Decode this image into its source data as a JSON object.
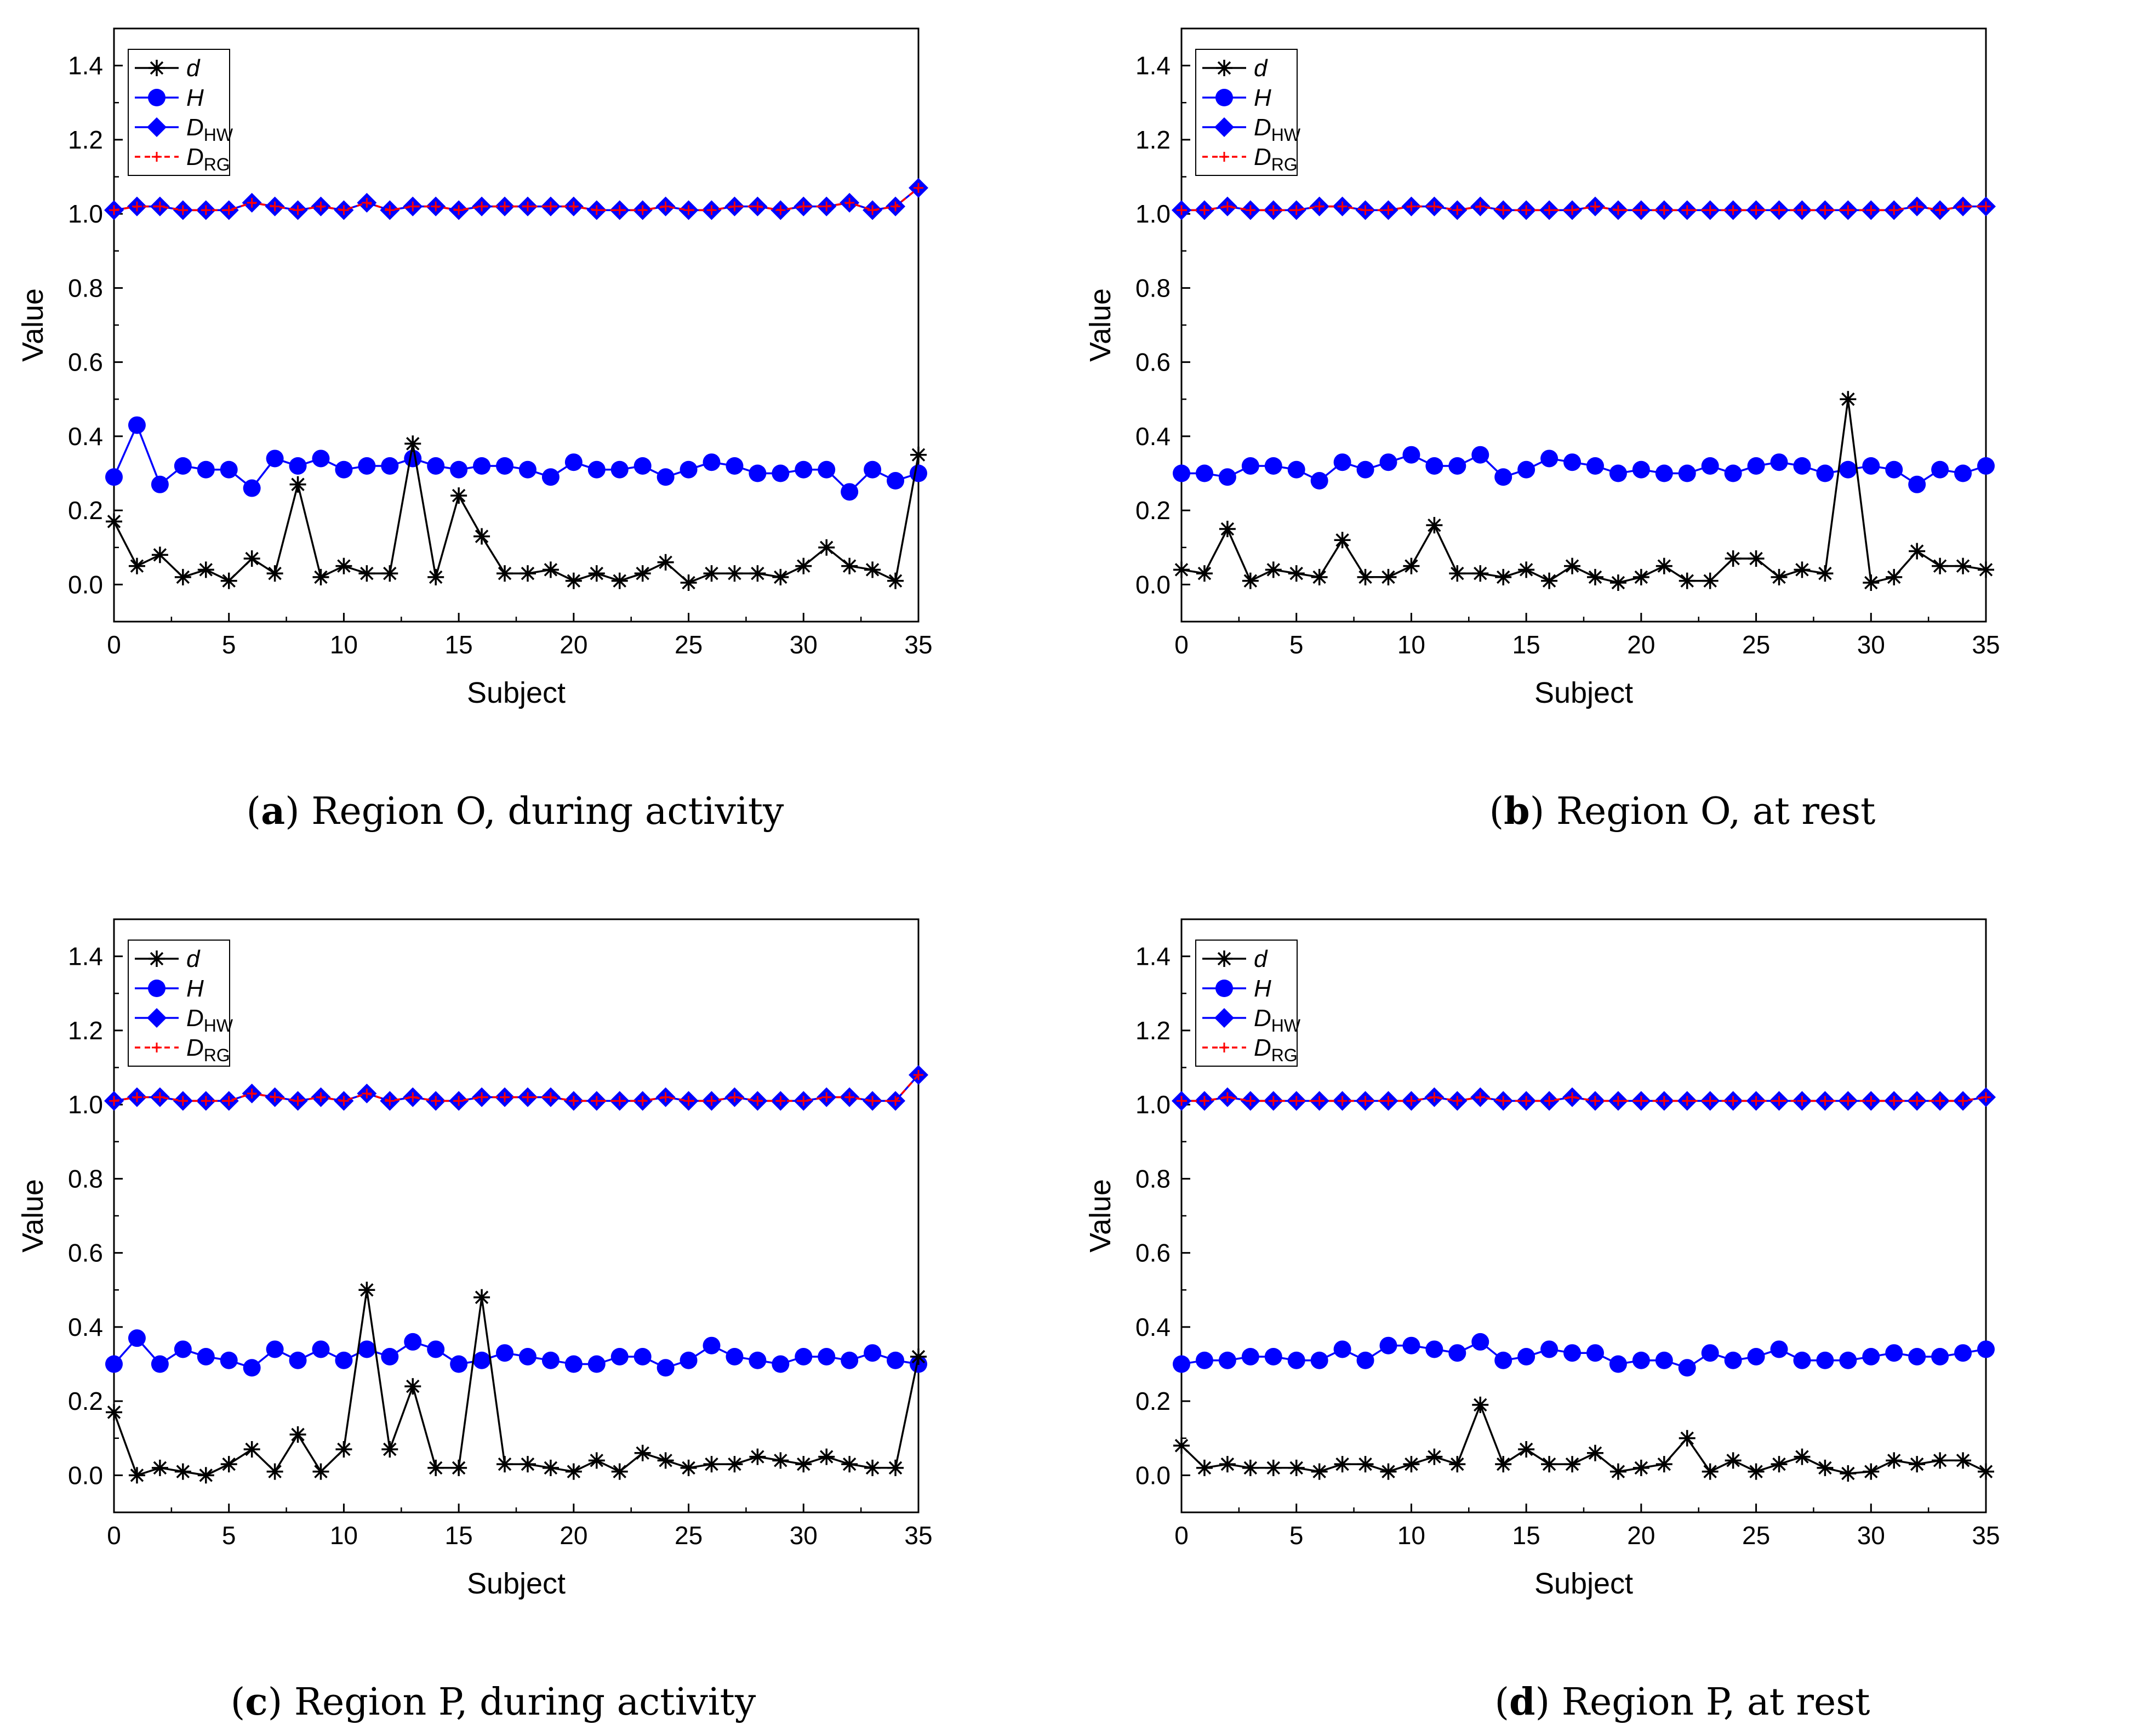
{
  "chart_data": [
    {
      "type": "line",
      "panel_letter": "a",
      "caption": "Region O, during activity",
      "xlabel": "Subject",
      "ylabel": "Value",
      "xlim": [
        0,
        35
      ],
      "ylim": [
        -0.1,
        1.5
      ],
      "xticks": [
        "0",
        "5",
        "10",
        "15",
        "20",
        "25",
        "30",
        "35"
      ],
      "yticks": [
        "0.0",
        "0.2",
        "0.4",
        "0.6",
        "0.8",
        "1.0",
        "1.2",
        "1.4"
      ],
      "legend_position": "top-left",
      "series": [
        {
          "name": "d",
          "color": "#000000",
          "marker": "asterisk",
          "line": "solid",
          "values": [
            0.17,
            0.05,
            0.08,
            0.02,
            0.04,
            0.01,
            0.07,
            0.03,
            0.27,
            0.02,
            0.05,
            0.03,
            0.03,
            0.38,
            0.02,
            0.24,
            0.13,
            0.03,
            0.03,
            0.04,
            0.01,
            0.03,
            0.01,
            0.03,
            0.06,
            0.005,
            0.03,
            0.03,
            0.03,
            0.02,
            0.05,
            0.1,
            0.05,
            0.04,
            0.01,
            0.35
          ]
        },
        {
          "name": "H",
          "color": "#0000ff",
          "marker": "circle",
          "line": "solid",
          "values": [
            0.29,
            0.43,
            0.27,
            0.32,
            0.31,
            0.31,
            0.26,
            0.34,
            0.32,
            0.34,
            0.31,
            0.32,
            0.32,
            0.34,
            0.32,
            0.31,
            0.32,
            0.32,
            0.31,
            0.29,
            0.33,
            0.31,
            0.31,
            0.32,
            0.29,
            0.31,
            0.33,
            0.32,
            0.3,
            0.3,
            0.31,
            0.31,
            0.25,
            0.31,
            0.28,
            0.3
          ]
        },
        {
          "name": "D",
          "subscript": "HW",
          "color": "#0000ff",
          "marker": "diamond",
          "line": "solid",
          "values": [
            1.01,
            1.02,
            1.02,
            1.01,
            1.01,
            1.01,
            1.03,
            1.02,
            1.01,
            1.02,
            1.01,
            1.03,
            1.01,
            1.02,
            1.02,
            1.01,
            1.02,
            1.02,
            1.02,
            1.02,
            1.02,
            1.01,
            1.01,
            1.01,
            1.02,
            1.01,
            1.01,
            1.02,
            1.02,
            1.01,
            1.02,
            1.02,
            1.03,
            1.01,
            1.02,
            1.07
          ]
        },
        {
          "name": "D",
          "subscript": "RG",
          "color": "#ff0000",
          "marker": "plus",
          "line": "dashed",
          "values": [
            1.01,
            1.02,
            1.02,
            1.01,
            1.01,
            1.01,
            1.03,
            1.02,
            1.01,
            1.02,
            1.01,
            1.03,
            1.01,
            1.02,
            1.02,
            1.01,
            1.02,
            1.02,
            1.02,
            1.02,
            1.02,
            1.01,
            1.01,
            1.01,
            1.02,
            1.01,
            1.01,
            1.02,
            1.02,
            1.01,
            1.02,
            1.02,
            1.03,
            1.01,
            1.02,
            1.07
          ]
        }
      ]
    },
    {
      "type": "line",
      "panel_letter": "b",
      "caption": "Region O, at rest",
      "xlabel": "Subject",
      "ylabel": "Value",
      "xlim": [
        0,
        35
      ],
      "ylim": [
        -0.1,
        1.5
      ],
      "xticks": [
        "0",
        "5",
        "10",
        "15",
        "20",
        "25",
        "30",
        "35"
      ],
      "yticks": [
        "0.0",
        "0.2",
        "0.4",
        "0.6",
        "0.8",
        "1.0",
        "1.2",
        "1.4"
      ],
      "legend_position": "top-left",
      "series": [
        {
          "name": "d",
          "color": "#000000",
          "marker": "asterisk",
          "line": "solid",
          "values": [
            0.04,
            0.03,
            0.15,
            0.01,
            0.04,
            0.03,
            0.02,
            0.12,
            0.02,
            0.02,
            0.05,
            0.16,
            0.03,
            0.03,
            0.02,
            0.04,
            0.01,
            0.05,
            0.02,
            0.005,
            0.02,
            0.05,
            0.01,
            0.01,
            0.07,
            0.07,
            0.02,
            0.04,
            0.03,
            0.5,
            0.005,
            0.02,
            0.09,
            0.05,
            0.05,
            0.04
          ]
        },
        {
          "name": "H",
          "color": "#0000ff",
          "marker": "circle",
          "line": "solid",
          "values": [
            0.3,
            0.3,
            0.29,
            0.32,
            0.32,
            0.31,
            0.28,
            0.33,
            0.31,
            0.33,
            0.35,
            0.32,
            0.32,
            0.35,
            0.29,
            0.31,
            0.34,
            0.33,
            0.32,
            0.3,
            0.31,
            0.3,
            0.3,
            0.32,
            0.3,
            0.32,
            0.33,
            0.32,
            0.3,
            0.31,
            0.32,
            0.31,
            0.27,
            0.31,
            0.3,
            0.32
          ]
        },
        {
          "name": "D",
          "subscript": "HW",
          "color": "#0000ff",
          "marker": "diamond",
          "line": "solid",
          "values": [
            1.01,
            1.01,
            1.02,
            1.01,
            1.01,
            1.01,
            1.02,
            1.02,
            1.01,
            1.01,
            1.02,
            1.02,
            1.01,
            1.02,
            1.01,
            1.01,
            1.01,
            1.01,
            1.02,
            1.01,
            1.01,
            1.01,
            1.01,
            1.01,
            1.01,
            1.01,
            1.01,
            1.01,
            1.01,
            1.01,
            1.01,
            1.01,
            1.02,
            1.01,
            1.02,
            1.02
          ]
        },
        {
          "name": "D",
          "subscript": "RG",
          "color": "#ff0000",
          "marker": "plus",
          "line": "dashed",
          "values": [
            1.01,
            1.01,
            1.02,
            1.01,
            1.01,
            1.01,
            1.02,
            1.02,
            1.01,
            1.01,
            1.02,
            1.02,
            1.01,
            1.02,
            1.01,
            1.01,
            1.01,
            1.01,
            1.02,
            1.01,
            1.01,
            1.01,
            1.01,
            1.01,
            1.01,
            1.01,
            1.01,
            1.01,
            1.01,
            1.01,
            1.01,
            1.01,
            1.02,
            1.01,
            1.02,
            1.02
          ]
        }
      ]
    },
    {
      "type": "line",
      "panel_letter": "c",
      "caption": "Region P, during activity",
      "xlabel": "Subject",
      "ylabel": "Value",
      "xlim": [
        0,
        35
      ],
      "ylim": [
        -0.1,
        1.5
      ],
      "xticks": [
        "0",
        "5",
        "10",
        "15",
        "20",
        "25",
        "30",
        "35"
      ],
      "yticks": [
        "0.0",
        "0.2",
        "0.4",
        "0.6",
        "0.8",
        "1.0",
        "1.2",
        "1.4"
      ],
      "legend_position": "top-left",
      "series": [
        {
          "name": "d",
          "color": "#000000",
          "marker": "asterisk",
          "line": "solid",
          "values": [
            0.17,
            0.0,
            0.02,
            0.01,
            0.0,
            0.03,
            0.07,
            0.01,
            0.11,
            0.01,
            0.07,
            0.5,
            0.07,
            0.24,
            0.02,
            0.02,
            0.48,
            0.03,
            0.03,
            0.02,
            0.01,
            0.04,
            0.01,
            0.06,
            0.04,
            0.02,
            0.03,
            0.03,
            0.05,
            0.04,
            0.03,
            0.05,
            0.03,
            0.02,
            0.02,
            0.32
          ]
        },
        {
          "name": "H",
          "color": "#0000ff",
          "marker": "circle",
          "line": "solid",
          "values": [
            0.3,
            0.37,
            0.3,
            0.34,
            0.32,
            0.31,
            0.29,
            0.34,
            0.31,
            0.34,
            0.31,
            0.34,
            0.32,
            0.36,
            0.34,
            0.3,
            0.31,
            0.33,
            0.32,
            0.31,
            0.3,
            0.3,
            0.32,
            0.32,
            0.29,
            0.31,
            0.35,
            0.32,
            0.31,
            0.3,
            0.32,
            0.32,
            0.31,
            0.33,
            0.31,
            0.3
          ]
        },
        {
          "name": "D",
          "subscript": "HW",
          "color": "#0000ff",
          "marker": "diamond",
          "line": "solid",
          "values": [
            1.01,
            1.02,
            1.02,
            1.01,
            1.01,
            1.01,
            1.03,
            1.02,
            1.01,
            1.02,
            1.01,
            1.03,
            1.01,
            1.02,
            1.01,
            1.01,
            1.02,
            1.02,
            1.02,
            1.02,
            1.01,
            1.01,
            1.01,
            1.01,
            1.02,
            1.01,
            1.01,
            1.02,
            1.01,
            1.01,
            1.01,
            1.02,
            1.02,
            1.01,
            1.01,
            1.08
          ]
        },
        {
          "name": "D",
          "subscript": "RG",
          "color": "#ff0000",
          "marker": "plus",
          "line": "dashed",
          "values": [
            1.01,
            1.02,
            1.02,
            1.01,
            1.01,
            1.01,
            1.03,
            1.02,
            1.01,
            1.02,
            1.01,
            1.03,
            1.01,
            1.02,
            1.01,
            1.01,
            1.02,
            1.02,
            1.02,
            1.02,
            1.01,
            1.01,
            1.01,
            1.01,
            1.02,
            1.01,
            1.01,
            1.02,
            1.01,
            1.01,
            1.01,
            1.02,
            1.02,
            1.01,
            1.01,
            1.08
          ]
        }
      ]
    },
    {
      "type": "line",
      "panel_letter": "d",
      "caption": "Region P, at rest",
      "xlabel": "Subject",
      "ylabel": "Value",
      "xlim": [
        0,
        35
      ],
      "ylim": [
        -0.1,
        1.5
      ],
      "xticks": [
        "0",
        "5",
        "10",
        "15",
        "20",
        "25",
        "30",
        "35"
      ],
      "yticks": [
        "0.0",
        "0.2",
        "0.4",
        "0.6",
        "0.8",
        "1.0",
        "1.2",
        "1.4"
      ],
      "legend_position": "top-left",
      "series": [
        {
          "name": "d",
          "color": "#000000",
          "marker": "asterisk",
          "line": "solid",
          "values": [
            0.08,
            0.02,
            0.03,
            0.02,
            0.02,
            0.02,
            0.01,
            0.03,
            0.03,
            0.01,
            0.03,
            0.05,
            0.03,
            0.19,
            0.03,
            0.07,
            0.03,
            0.03,
            0.06,
            0.01,
            0.02,
            0.03,
            0.1,
            0.01,
            0.04,
            0.01,
            0.03,
            0.05,
            0.02,
            0.005,
            0.01,
            0.04,
            0.03,
            0.04,
            0.04,
            0.01
          ]
        },
        {
          "name": "H",
          "color": "#0000ff",
          "marker": "circle",
          "line": "solid",
          "values": [
            0.3,
            0.31,
            0.31,
            0.32,
            0.32,
            0.31,
            0.31,
            0.34,
            0.31,
            0.35,
            0.35,
            0.34,
            0.33,
            0.36,
            0.31,
            0.32,
            0.34,
            0.33,
            0.33,
            0.3,
            0.31,
            0.31,
            0.29,
            0.33,
            0.31,
            0.32,
            0.34,
            0.31,
            0.31,
            0.31,
            0.32,
            0.33,
            0.32,
            0.32,
            0.33,
            0.34
          ]
        },
        {
          "name": "D",
          "subscript": "HW",
          "color": "#0000ff",
          "marker": "diamond",
          "line": "solid",
          "values": [
            1.01,
            1.01,
            1.02,
            1.01,
            1.01,
            1.01,
            1.01,
            1.01,
            1.01,
            1.01,
            1.01,
            1.02,
            1.01,
            1.02,
            1.01,
            1.01,
            1.01,
            1.02,
            1.01,
            1.01,
            1.01,
            1.01,
            1.01,
            1.01,
            1.01,
            1.01,
            1.01,
            1.01,
            1.01,
            1.01,
            1.01,
            1.01,
            1.01,
            1.01,
            1.01,
            1.02
          ]
        },
        {
          "name": "D",
          "subscript": "RG",
          "color": "#ff0000",
          "marker": "plus",
          "line": "dashed",
          "values": [
            1.01,
            1.01,
            1.02,
            1.01,
            1.01,
            1.01,
            1.01,
            1.01,
            1.01,
            1.01,
            1.01,
            1.02,
            1.01,
            1.02,
            1.01,
            1.01,
            1.01,
            1.02,
            1.01,
            1.01,
            1.01,
            1.01,
            1.01,
            1.01,
            1.01,
            1.01,
            1.01,
            1.01,
            1.01,
            1.01,
            1.01,
            1.01,
            1.01,
            1.01,
            1.01,
            1.02
          ]
        }
      ]
    }
  ]
}
